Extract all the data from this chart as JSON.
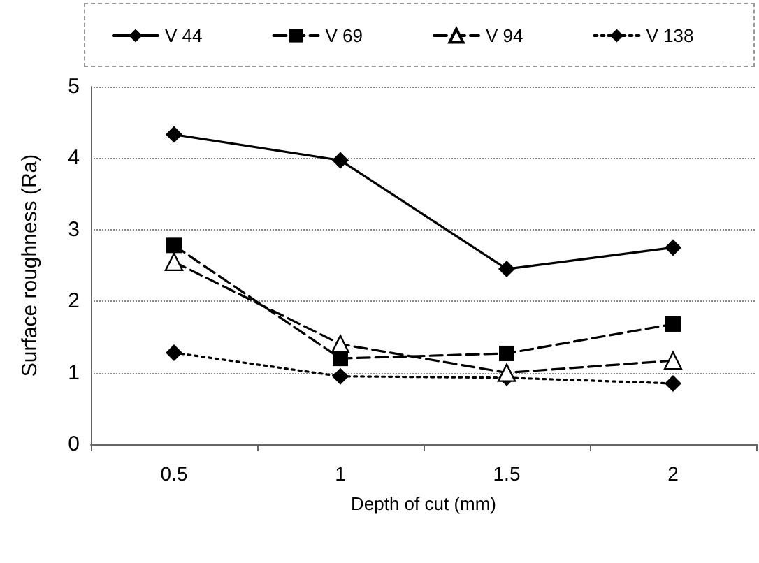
{
  "chart_data": {
    "type": "line",
    "xlabel": "Depth of cut (mm)",
    "ylabel": "Surface roughness (Ra)",
    "categories": [
      "0.5",
      "1",
      "1.5",
      "2"
    ],
    "series": [
      {
        "name": "V 44",
        "color": "#000000",
        "marker": "diamond",
        "line_style": "solid",
        "values": [
          4.33,
          3.97,
          2.45,
          2.75
        ]
      },
      {
        "name": "V 69",
        "color": "#000000",
        "marker": "square",
        "line_style": "dashed",
        "values": [
          2.78,
          1.2,
          1.27,
          1.68
        ]
      },
      {
        "name": "V 94",
        "color": "#000000",
        "marker": "triangle",
        "line_style": "dashed",
        "values": [
          2.55,
          1.4,
          1.0,
          1.17
        ]
      },
      {
        "name": "V 138",
        "color": "#000000",
        "marker": "diamond",
        "line_style": "dotted",
        "values": [
          1.28,
          0.95,
          0.93,
          0.85
        ]
      }
    ],
    "ylim": [
      0,
      5
    ],
    "yticks": [
      0,
      1,
      2,
      3,
      4,
      5
    ],
    "grid": "y",
    "legend": "top"
  }
}
